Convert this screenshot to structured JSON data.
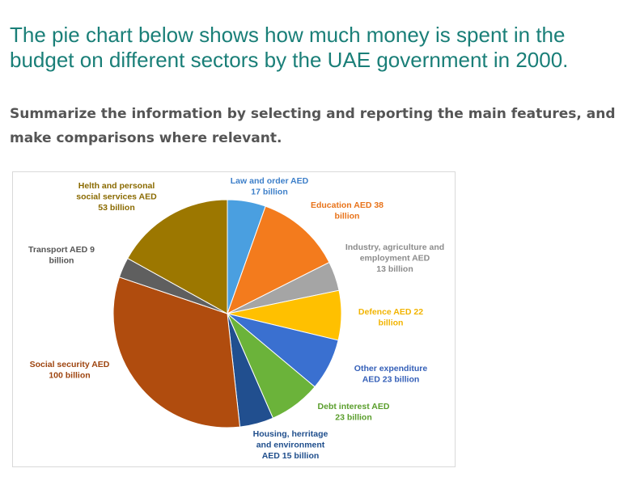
{
  "prompt": {
    "title": "The pie chart below shows how much money is spent in the budget on different sectors by the UAE government in 2000.",
    "instructions": "Summarize the information by selecting and reporting the main features, and make comparisons where relevant."
  },
  "chart_data": {
    "type": "pie",
    "title": "",
    "units": "AED billion",
    "start": "12 o'clock",
    "direction": "clockwise",
    "slices": [
      {
        "name": "Law and order",
        "value": 17,
        "color": "#4a9fe0",
        "label_lines": [
          "Law and order AED",
          "17 billion"
        ],
        "label_color": "#3d7fc9"
      },
      {
        "name": "Education",
        "value": 38,
        "color": "#f37b1d",
        "label_lines": [
          "Education AED 38",
          "billion"
        ],
        "label_color": "#e8731a"
      },
      {
        "name": "Industry, agriculture and employment",
        "value": 13,
        "color": "#a5a5a5",
        "label_lines": [
          "Industry, agriculture and",
          "employment AED",
          "13 billion"
        ],
        "label_color": "#8c8c8c"
      },
      {
        "name": "Defence",
        "value": 22,
        "color": "#ffc000",
        "label_lines": [
          "Defence AED 22",
          "billion"
        ],
        "label_color": "#f2b400"
      },
      {
        "name": "Other expenditure",
        "value": 23,
        "color": "#3a70d0",
        "label_lines": [
          "Other expenditure",
          "AED 23 billion"
        ],
        "label_color": "#3560b8"
      },
      {
        "name": "Debt interest",
        "value": 23,
        "color": "#6bb33a",
        "label_lines": [
          "Debt interest AED",
          "23 billion"
        ],
        "label_color": "#5a9e2c"
      },
      {
        "name": "Housing, herritage and environment",
        "value": 15,
        "color": "#214f8f",
        "label_lines": [
          "Housing, herritage",
          "and environment",
          "AED 15 billion"
        ],
        "label_color": "#1f4e8c"
      },
      {
        "name": "Social security",
        "value": 100,
        "color": "#b04c0e",
        "label_lines": [
          "Social security AED",
          "100 billion"
        ],
        "label_color": "#9e4510"
      },
      {
        "name": "Transport",
        "value": 9,
        "color": "#5f5f5f",
        "label_lines": [
          "Transport AED 9",
          "billion"
        ],
        "label_color": "#555555"
      },
      {
        "name": "Helth and personal social services",
        "value": 53,
        "color": "#9c7700",
        "label_lines": [
          "Helth and personal",
          "social services AED",
          "53 billion"
        ],
        "label_color": "#8a6a00"
      }
    ],
    "legend": "none (slices labelled directly)"
  }
}
